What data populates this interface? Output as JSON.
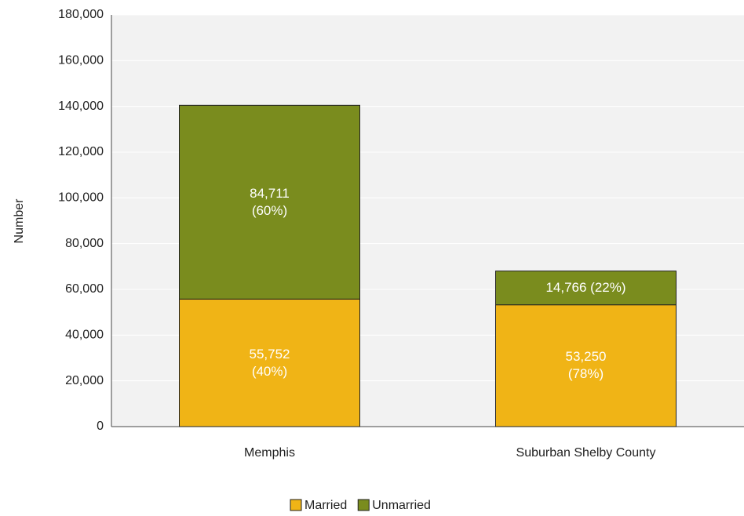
{
  "chart_data": {
    "type": "bar",
    "stacked": true,
    "categories": [
      "Memphis",
      "Suburban Shelby County"
    ],
    "series": [
      {
        "name": "Married",
        "color": "#f0b416",
        "values": [
          55752,
          53250
        ],
        "value_labels": [
          "55,752\n(40%)",
          "53,250\n(78%)"
        ]
      },
      {
        "name": "Unmarried",
        "color": "#7a8c1e",
        "values": [
          84711,
          14766
        ],
        "value_labels": [
          "84,711\n(60%)",
          "14,766 (22%)"
        ]
      }
    ],
    "ylabel": "Number",
    "ylim": [
      0,
      180000
    ],
    "yticks": [
      0,
      {
        "value": 20000,
        "label": "20,000"
      },
      {
        "value": 40000,
        "label": "40,000"
      },
      {
        "value": 60000,
        "label": "60,000"
      },
      {
        "value": 80000,
        "label": "80,000"
      },
      {
        "value": 100000,
        "label": "100,000"
      },
      {
        "value": 120000,
        "label": "120,000"
      },
      {
        "value": 140000,
        "label": "140,000"
      },
      {
        "value": 160000,
        "label": "160,000"
      },
      {
        "value": 180000,
        "label": "180,000"
      }
    ],
    "grid": true,
    "legend": "bottom"
  }
}
